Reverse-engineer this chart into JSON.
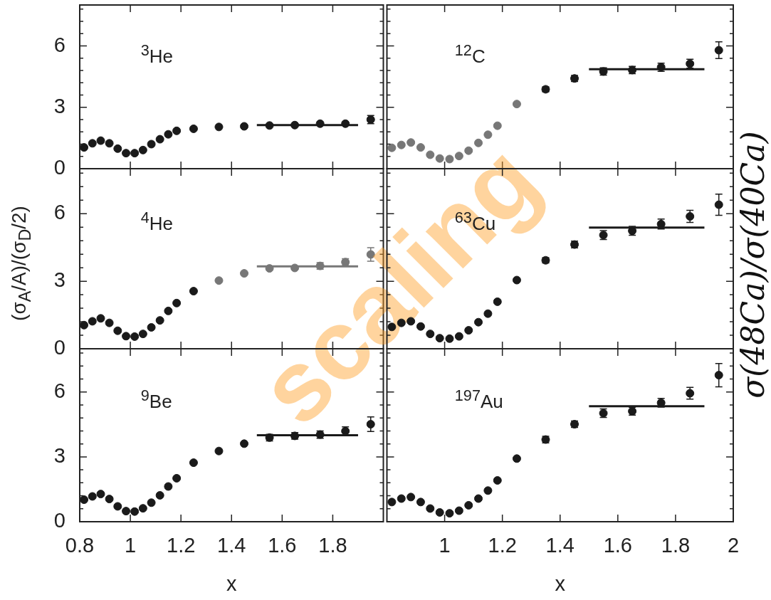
{
  "chart_data": [
    {
      "type": "scatter",
      "x": [
        0.817,
        0.85,
        0.883,
        0.917,
        0.95,
        0.983,
        1.017,
        1.05,
        1.083,
        1.117,
        1.15,
        1.183,
        1.25,
        1.35,
        1.45,
        1.55,
        1.65,
        1.75,
        1.85,
        1.95,
        1.5,
        1.9
      ],
      "xlim": [
        0.8,
        2
      ],
      "xticks": [
        0.8,
        1,
        1.2,
        1.4,
        1.6,
        1.8
      ],
      "ylim": [
        0,
        8
      ],
      "yticks": [
        0,
        {
          "value": 0.6,
          "label": null
        },
        {
          "value": 1.2,
          "label": null
        },
        {
          "value": 1.8,
          "label": null
        },
        {
          "value": 2.4,
          "label": null
        },
        3,
        {
          "value": 3.6,
          "label": null
        },
        {
          "value": 4.2,
          "label": null
        },
        {
          "value": 4.8,
          "label": null
        },
        {
          "value": 5.4,
          "label": null
        },
        6,
        {
          "value": 6.6,
          "label": null
        },
        {
          "value": 7.2,
          "label": null
        },
        {
          "value": 7.8,
          "label": null
        }
      ],
      "tick_labels": "y",
      "marker": "circle",
      "annotations": [
        "$^{3}$He"
      ],
      "series": [
        {
          "color": "#1a1a1a",
          "values": [
            1.04,
            1.24,
            1.37,
            1.24,
            0.98,
            0.76,
            0.76,
            0.91,
            1.2,
            1.44,
            1.68,
            1.85,
            1.95,
            2.04,
            2.07,
            2.11,
            2.13,
            2.2,
            2.2,
            2.4,
            null,
            null
          ],
          "errors": [
            null,
            null,
            null,
            null,
            null,
            null,
            null,
            null,
            null,
            null,
            null,
            null,
            null,
            null,
            null,
            null,
            null,
            null,
            null,
            0.2,
            null,
            null
          ]
        },
        {
          "type": "line",
          "marker": "none",
          "color": "#1a1a1a",
          "values": [
            null,
            null,
            null,
            null,
            null,
            null,
            null,
            null,
            null,
            null,
            null,
            null,
            null,
            null,
            null,
            null,
            null,
            null,
            null,
            null,
            2.13,
            2.13
          ]
        }
      ]
    },
    {
      "type": "scatter",
      "x": [
        0.817,
        0.85,
        0.883,
        0.917,
        0.95,
        0.983,
        1.017,
        1.05,
        1.083,
        1.117,
        1.15,
        1.183,
        1.25,
        1.35,
        1.45,
        1.55,
        1.65,
        1.75,
        1.85,
        1.95,
        1.5,
        1.9
      ],
      "xlim": [
        0.8,
        2
      ],
      "xticks": [
        1,
        1.2,
        1.4,
        1.6,
        1.8,
        2
      ],
      "ylim": [
        0,
        8
      ],
      "yticks": [
        0,
        {
          "value": 0.6,
          "label": null
        },
        {
          "value": 1.2,
          "label": null
        },
        {
          "value": 1.8,
          "label": null
        },
        {
          "value": 2.4,
          "label": null
        },
        3,
        {
          "value": 3.6,
          "label": null
        },
        {
          "value": 4.2,
          "label": null
        },
        {
          "value": 4.8,
          "label": null
        },
        {
          "value": 5.4,
          "label": null
        },
        6,
        {
          "value": 6.6,
          "label": null
        },
        {
          "value": 7.2,
          "label": null
        },
        {
          "value": 7.8,
          "label": null
        }
      ],
      "tick_labels": false,
      "marker": "circle",
      "annotations": [
        "$^{12}$C"
      ],
      "series": [
        {
          "color": "#1a1a1a",
          "colors": [
            "#777777",
            "#777777",
            "#777777",
            "#777777",
            "#777777",
            "#777777",
            "#777777",
            "#777777",
            "#777777",
            "#777777",
            "#777777",
            "#777777",
            "#777777",
            "#1a1a1a",
            "#1a1a1a",
            "#1a1a1a",
            "#1a1a1a",
            "#1a1a1a",
            "#1a1a1a",
            "#1a1a1a",
            "#1a1a1a",
            "#1a1a1a"
          ],
          "values": [
            1.02,
            1.16,
            1.28,
            1.04,
            0.68,
            0.5,
            0.47,
            0.62,
            0.88,
            1.26,
            1.66,
            2.1,
            3.16,
            3.88,
            4.41,
            4.75,
            4.82,
            4.96,
            5.13,
            5.79,
            null,
            null
          ],
          "errors": [
            null,
            null,
            null,
            null,
            null,
            null,
            null,
            null,
            null,
            null,
            null,
            null,
            null,
            0.12,
            0.15,
            0.18,
            0.18,
            0.2,
            0.22,
            0.41,
            null,
            null
          ]
        },
        {
          "type": "line",
          "marker": "none",
          "color": "#1a1a1a",
          "values": [
            null,
            null,
            null,
            null,
            null,
            null,
            null,
            null,
            null,
            null,
            null,
            null,
            null,
            null,
            null,
            null,
            null,
            null,
            null,
            null,
            4.86,
            4.86
          ]
        }
      ]
    },
    {
      "type": "scatter",
      "x": [
        0.817,
        0.85,
        0.883,
        0.917,
        0.95,
        0.983,
        1.017,
        1.05,
        1.083,
        1.117,
        1.15,
        1.183,
        1.25,
        1.35,
        1.45,
        1.55,
        1.65,
        1.75,
        1.85,
        1.95,
        1.5,
        1.9
      ],
      "xlim": [
        0.8,
        2
      ],
      "xticks": [
        0.8,
        1,
        1.2,
        1.4,
        1.6,
        1.8
      ],
      "ylim": [
        0,
        8
      ],
      "yticks": [
        0,
        {
          "value": 0.6,
          "label": null
        },
        {
          "value": 1.2,
          "label": null
        },
        {
          "value": 1.8,
          "label": null
        },
        {
          "value": 2.4,
          "label": null
        },
        3,
        {
          "value": 3.6,
          "label": null
        },
        {
          "value": 4.2,
          "label": null
        },
        {
          "value": 4.8,
          "label": null
        },
        {
          "value": 5.4,
          "label": null
        },
        6,
        {
          "value": 6.6,
          "label": null
        },
        {
          "value": 7.2,
          "label": null
        },
        {
          "value": 7.8,
          "label": null
        }
      ],
      "tick_labels": "y",
      "marker": "circle",
      "ylabel": "(σ$_{A}$/A)/(σ$_{D}$/2)",
      "annotations": [
        "$^{4}$He",
        "scaling"
      ],
      "series": [
        {
          "color": "#1a1a1a",
          "colors": [
            "#1a1a1a",
            "#1a1a1a",
            "#1a1a1a",
            "#1a1a1a",
            "#1a1a1a",
            "#1a1a1a",
            "#1a1a1a",
            "#1a1a1a",
            "#1a1a1a",
            "#1a1a1a",
            "#1a1a1a",
            "#1a1a1a",
            "#1a1a1a",
            "#777777",
            "#777777",
            "#777777",
            "#777777",
            "#777777",
            "#777777",
            "#777777",
            "#777777",
            "#777777"
          ],
          "values": [
            1.05,
            1.22,
            1.35,
            1.15,
            0.8,
            0.56,
            0.54,
            0.66,
            0.95,
            1.26,
            1.68,
            2.03,
            2.56,
            3.03,
            3.35,
            3.57,
            3.59,
            3.68,
            3.85,
            4.19,
            null,
            null
          ],
          "errors": [
            null,
            null,
            null,
            null,
            null,
            null,
            null,
            null,
            null,
            null,
            null,
            null,
            null,
            null,
            null,
            null,
            null,
            0.15,
            0.15,
            0.3,
            null,
            null
          ]
        },
        {
          "type": "line",
          "marker": "none",
          "color": "#777777",
          "values": [
            null,
            null,
            null,
            null,
            null,
            null,
            null,
            null,
            null,
            null,
            null,
            null,
            null,
            null,
            null,
            null,
            null,
            null,
            null,
            null,
            3.66,
            3.66
          ]
        }
      ]
    },
    {
      "type": "scatter",
      "x": [
        0.817,
        0.85,
        0.883,
        0.917,
        0.95,
        0.983,
        1.017,
        1.05,
        1.083,
        1.117,
        1.15,
        1.183,
        1.25,
        1.35,
        1.45,
        1.55,
        1.65,
        1.75,
        1.85,
        1.95,
        1.5,
        1.9
      ],
      "xlim": [
        0.8,
        2
      ],
      "xticks": [
        1,
        1.2,
        1.4,
        1.6,
        1.8,
        2
      ],
      "ylim": [
        0,
        8
      ],
      "yticks": [
        0,
        {
          "value": 0.6,
          "label": null
        },
        {
          "value": 1.2,
          "label": null
        },
        {
          "value": 1.8,
          "label": null
        },
        {
          "value": 2.4,
          "label": null
        },
        3,
        {
          "value": 3.6,
          "label": null
        },
        {
          "value": 4.2,
          "label": null
        },
        {
          "value": 4.8,
          "label": null
        },
        {
          "value": 5.4,
          "label": null
        },
        6,
        {
          "value": 6.6,
          "label": null
        },
        {
          "value": 7.2,
          "label": null
        },
        {
          "value": 7.8,
          "label": null
        }
      ],
      "tick_labels": false,
      "marker": "circle",
      "y2label": "σ(48Ca)/σ(40Ca)",
      "annotations": [
        "$^{63}$Cu"
      ],
      "series": [
        {
          "color": "#1a1a1a",
          "values": [
            0.97,
            1.15,
            1.22,
            0.99,
            0.66,
            0.47,
            0.45,
            0.55,
            0.82,
            1.18,
            1.56,
            2.09,
            3.05,
            3.93,
            4.63,
            5.05,
            5.24,
            5.54,
            5.88,
            6.4,
            null,
            null
          ],
          "errors": [
            null,
            null,
            null,
            null,
            null,
            null,
            null,
            null,
            null,
            null,
            null,
            null,
            null,
            0.12,
            0.15,
            0.2,
            0.2,
            0.22,
            0.27,
            0.47,
            null,
            null
          ]
        },
        {
          "type": "line",
          "marker": "none",
          "color": "#1a1a1a",
          "values": [
            null,
            null,
            null,
            null,
            null,
            null,
            null,
            null,
            null,
            null,
            null,
            null,
            null,
            null,
            null,
            null,
            null,
            null,
            null,
            null,
            5.38,
            5.38
          ]
        }
      ]
    },
    {
      "type": "scatter",
      "x": [
        0.817,
        0.85,
        0.883,
        0.917,
        0.95,
        0.983,
        1.017,
        1.05,
        1.083,
        1.117,
        1.15,
        1.183,
        1.25,
        1.35,
        1.45,
        1.55,
        1.65,
        1.75,
        1.85,
        1.95,
        1.5,
        1.9
      ],
      "xlim": [
        0.8,
        2
      ],
      "xticks": [
        0.8,
        1,
        1.2,
        1.4,
        1.6,
        1.8
      ],
      "ylim": [
        0,
        8
      ],
      "yticks": [
        0,
        {
          "value": 0.6,
          "label": null
        },
        {
          "value": 1.2,
          "label": null
        },
        {
          "value": 1.8,
          "label": null
        },
        {
          "value": 2.4,
          "label": null
        },
        3,
        {
          "value": 3.6,
          "label": null
        },
        {
          "value": 4.2,
          "label": null
        },
        {
          "value": 4.8,
          "label": null
        },
        {
          "value": 5.4,
          "label": null
        },
        6,
        {
          "value": 6.6,
          "label": null
        },
        {
          "value": 7.2,
          "label": null
        },
        {
          "value": 7.8,
          "label": null
        }
      ],
      "marker": "circle",
      "xlabel": "x",
      "annotations": [
        "$^{9}$Be"
      ],
      "series": [
        {
          "color": "#1a1a1a",
          "values": [
            1.02,
            1.17,
            1.28,
            1.05,
            0.71,
            0.49,
            0.47,
            0.62,
            0.88,
            1.22,
            1.63,
            2.01,
            2.73,
            3.27,
            3.61,
            3.89,
            3.97,
            4.03,
            4.19,
            4.51,
            null,
            null
          ],
          "errors": [
            null,
            null,
            null,
            null,
            null,
            null,
            null,
            null,
            null,
            null,
            null,
            null,
            null,
            null,
            null,
            0.15,
            0.15,
            0.17,
            0.2,
            0.34,
            null,
            null
          ]
        },
        {
          "type": "line",
          "marker": "none",
          "color": "#1a1a1a",
          "values": [
            null,
            null,
            null,
            null,
            null,
            null,
            null,
            null,
            null,
            null,
            null,
            null,
            null,
            null,
            null,
            null,
            null,
            null,
            null,
            null,
            4.0,
            4.0
          ]
        }
      ]
    },
    {
      "type": "scatter",
      "x": [
        0.817,
        0.85,
        0.883,
        0.917,
        0.95,
        0.983,
        1.017,
        1.05,
        1.083,
        1.117,
        1.15,
        1.183,
        1.25,
        1.35,
        1.45,
        1.55,
        1.65,
        1.75,
        1.85,
        1.95,
        1.5,
        1.9
      ],
      "xlim": [
        0.8,
        2
      ],
      "xticks": [
        1,
        1.2,
        1.4,
        1.6,
        1.8,
        2
      ],
      "ylim": [
        0,
        8
      ],
      "yticks": [
        0,
        {
          "value": 0.6,
          "label": null
        },
        {
          "value": 1.2,
          "label": null
        },
        {
          "value": 1.8,
          "label": null
        },
        {
          "value": 2.4,
          "label": null
        },
        3,
        {
          "value": 3.6,
          "label": null
        },
        {
          "value": 4.2,
          "label": null
        },
        {
          "value": 4.8,
          "label": null
        },
        {
          "value": 5.4,
          "label": null
        },
        6,
        {
          "value": 6.6,
          "label": null
        },
        {
          "value": 7.2,
          "label": null
        },
        {
          "value": 7.8,
          "label": null
        }
      ],
      "tick_labels": "x",
      "marker": "circle",
      "xlabel": "x",
      "annotations": [
        "$^{197}$Au"
      ],
      "series": [
        {
          "color": "#1a1a1a",
          "values": [
            0.91,
            1.07,
            1.14,
            0.91,
            0.61,
            0.43,
            0.39,
            0.51,
            0.76,
            1.07,
            1.44,
            1.91,
            2.92,
            3.8,
            4.51,
            5.02,
            5.11,
            5.5,
            5.94,
            6.78,
            null,
            null
          ],
          "errors": [
            null,
            null,
            null,
            null,
            null,
            null,
            null,
            null,
            null,
            null,
            null,
            null,
            null,
            0.15,
            0.15,
            0.2,
            0.18,
            0.2,
            0.27,
            0.54,
            null,
            null
          ]
        },
        {
          "type": "line",
          "marker": "none",
          "color": "#1a1a1a",
          "values": [
            null,
            null,
            null,
            null,
            null,
            null,
            null,
            null,
            null,
            null,
            null,
            null,
            null,
            null,
            null,
            null,
            null,
            null,
            null,
            null,
            5.34,
            5.34
          ]
        }
      ]
    }
  ]
}
